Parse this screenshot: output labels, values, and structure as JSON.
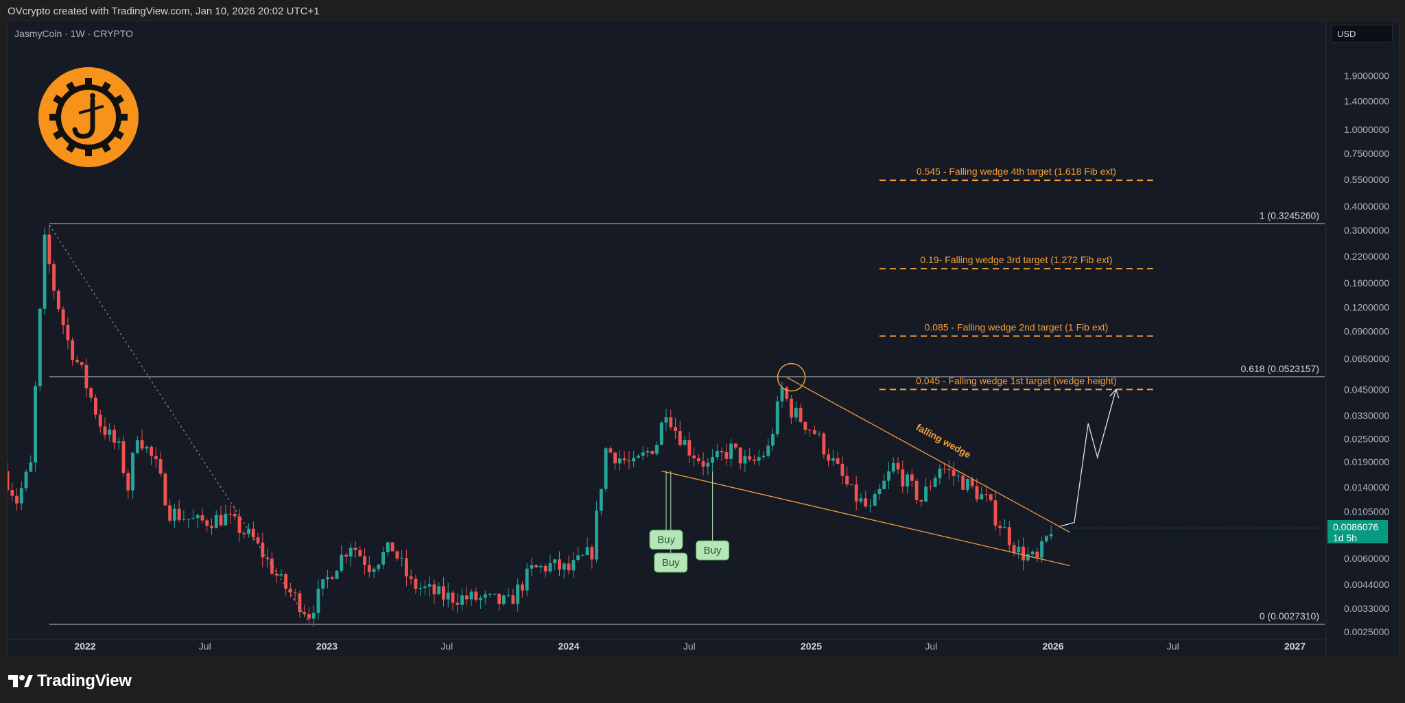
{
  "header": {
    "credit": "OVcrypto created with TradingView.com, Jan 10, 2026 20:02 UTC+1"
  },
  "symbol": {
    "title": "JasmyCoin · 1W · CRYPTO"
  },
  "currency_button": {
    "label": "USD"
  },
  "last_price": {
    "value": "0.0086076",
    "countdown": "1d 5h"
  },
  "brand": {
    "name": "TradingView"
  },
  "colors": {
    "up": "#26a69a",
    "down": "#ef5350",
    "accent": "#f7931a",
    "fib": "#d1d4dc",
    "target": "#f59e3a",
    "buy": "#b7e4b9"
  },
  "chart_data": {
    "type": "candlestick",
    "title": "JasmyCoin · 1W · CRYPTO",
    "scale": "log",
    "ylim": [
      0.0025,
      2.6
    ],
    "xlim": [
      "2021-09-06",
      "2027-02-15"
    ],
    "grid": false,
    "y_tick_labels": [
      "1.9000000",
      "1.4000000",
      "1.0000000",
      "0.7500000",
      "0.5500000",
      "0.4000000",
      "0.3000000",
      "0.2200000",
      "0.1600000",
      "0.1200000",
      "0.0900000",
      "0.0650000",
      "0.0450000",
      "0.0330000",
      "0.0250000",
      "0.0190000",
      "0.0140000",
      "0.0105000",
      "0.0060000",
      "0.0044000",
      "0.0033000",
      "0.0025000"
    ],
    "y_tick_values": [
      1.9,
      1.4,
      1.0,
      0.75,
      0.55,
      0.4,
      0.3,
      0.22,
      0.16,
      0.12,
      0.09,
      0.065,
      0.045,
      0.033,
      0.025,
      0.019,
      0.014,
      0.0105,
      0.006,
      0.0044,
      0.0033,
      0.0025
    ],
    "x_ticks": [
      {
        "date": "2022-01-01",
        "label": "2022",
        "major": true
      },
      {
        "date": "2022-07-01",
        "label": "Jul",
        "major": false
      },
      {
        "date": "2023-01-01",
        "label": "2023",
        "major": true
      },
      {
        "date": "2023-07-01",
        "label": "Jul",
        "major": false
      },
      {
        "date": "2024-01-01",
        "label": "2024",
        "major": true
      },
      {
        "date": "2024-07-01",
        "label": "Jul",
        "major": false
      },
      {
        "date": "2025-01-01",
        "label": "2025",
        "major": true
      },
      {
        "date": "2025-07-01",
        "label": "Jul",
        "major": false
      },
      {
        "date": "2026-01-01",
        "label": "2026",
        "major": true
      },
      {
        "date": "2026-07-01",
        "label": "Jul",
        "major": false
      },
      {
        "date": "2027-01-01",
        "label": "2027",
        "major": true
      }
    ],
    "path_anchors": [
      {
        "date": "2021-09-06",
        "price": 0.017
      },
      {
        "date": "2021-09-27",
        "price": 0.012
      },
      {
        "date": "2021-10-18",
        "price": 0.018
      },
      {
        "date": "2021-10-25",
        "price": 0.045
      },
      {
        "date": "2021-11-01",
        "price": 0.11
      },
      {
        "date": "2021-11-08",
        "price": 0.26
      },
      {
        "date": "2021-11-22",
        "price": 0.15
      },
      {
        "date": "2021-12-13",
        "price": 0.08
      },
      {
        "date": "2022-01-03",
        "price": 0.055
      },
      {
        "date": "2022-01-31",
        "price": 0.03
      },
      {
        "date": "2022-02-28",
        "price": 0.022
      },
      {
        "date": "2022-03-14",
        "price": 0.014
      },
      {
        "date": "2022-03-28",
        "price": 0.027
      },
      {
        "date": "2022-04-25",
        "price": 0.018
      },
      {
        "date": "2022-05-16",
        "price": 0.0105
      },
      {
        "date": "2022-06-27",
        "price": 0.0092
      },
      {
        "date": "2022-08-08",
        "price": 0.0098
      },
      {
        "date": "2022-09-19",
        "price": 0.0075
      },
      {
        "date": "2022-10-31",
        "price": 0.0045
      },
      {
        "date": "2022-12-12",
        "price": 0.0031
      },
      {
        "date": "2023-01-16",
        "price": 0.0052
      },
      {
        "date": "2023-02-13",
        "price": 0.0072
      },
      {
        "date": "2023-03-13",
        "price": 0.0055
      },
      {
        "date": "2023-04-17",
        "price": 0.0068
      },
      {
        "date": "2023-05-15",
        "price": 0.0044
      },
      {
        "date": "2023-07-03",
        "price": 0.0038
      },
      {
        "date": "2023-08-21",
        "price": 0.0037
      },
      {
        "date": "2023-10-09",
        "price": 0.0035
      },
      {
        "date": "2023-11-13",
        "price": 0.0052
      },
      {
        "date": "2023-12-11",
        "price": 0.0055
      },
      {
        "date": "2024-01-08",
        "price": 0.0052
      },
      {
        "date": "2024-02-12",
        "price": 0.0065
      },
      {
        "date": "2024-03-04",
        "price": 0.022
      },
      {
        "date": "2024-04-15",
        "price": 0.018
      },
      {
        "date": "2024-05-20",
        "price": 0.024
      },
      {
        "date": "2024-06-03",
        "price": 0.036
      },
      {
        "date": "2024-06-17",
        "price": 0.028
      },
      {
        "date": "2024-07-08",
        "price": 0.022
      },
      {
        "date": "2024-08-05",
        "price": 0.018
      },
      {
        "date": "2024-09-09",
        "price": 0.022
      },
      {
        "date": "2024-10-07",
        "price": 0.018
      },
      {
        "date": "2024-11-04",
        "price": 0.022
      },
      {
        "date": "2024-11-25",
        "price": 0.045
      },
      {
        "date": "2024-12-09",
        "price": 0.035
      },
      {
        "date": "2025-01-13",
        "price": 0.027
      },
      {
        "date": "2025-03-10",
        "price": 0.013
      },
      {
        "date": "2025-04-07",
        "price": 0.0105
      },
      {
        "date": "2025-05-12",
        "price": 0.018
      },
      {
        "date": "2025-06-23",
        "price": 0.012
      },
      {
        "date": "2025-07-21",
        "price": 0.018
      },
      {
        "date": "2025-08-25",
        "price": 0.015
      },
      {
        "date": "2025-09-29",
        "price": 0.012
      },
      {
        "date": "2025-10-13",
        "price": 0.0098
      },
      {
        "date": "2025-11-17",
        "price": 0.0065
      },
      {
        "date": "2025-12-15",
        "price": 0.0058
      },
      {
        "date": "2026-01-05",
        "price": 0.0086
      }
    ],
    "fib_levels": [
      {
        "ratio": "1",
        "price": 0.324526,
        "label": "1 (0.3245260)"
      },
      {
        "ratio": "0.618",
        "price": 0.0523157,
        "label": "0.618 (0.0523157)"
      },
      {
        "ratio": "0",
        "price": 0.002731,
        "label": "0 (0.0027310)"
      }
    ],
    "fib_start_date": "2021-11-08",
    "targets": [
      {
        "price": 0.545,
        "label": "0.545 - Falling wedge 4th target (1.618 Fib ext)"
      },
      {
        "price": 0.19,
        "label": "0.19- Falling wedge 3rd target (1.272 Fib ext)"
      },
      {
        "price": 0.085,
        "label": "0.085 - Falling wedge 2nd target (1 Fib ext)"
      },
      {
        "price": 0.045,
        "label": "0.045 - Falling wedge 1st target (wedge height)"
      }
    ],
    "targets_start_date": "2025-04-14",
    "targets_end_date": "2026-06-01",
    "wedge": {
      "label": "falling wedge",
      "upper": [
        {
          "date": "2024-11-25",
          "price": 0.052
        },
        {
          "date": "2026-01-26",
          "price": 0.0082
        }
      ],
      "lower": [
        {
          "date": "2024-05-20",
          "price": 0.017
        },
        {
          "date": "2026-01-26",
          "price": 0.0055
        }
      ]
    },
    "downtrend": [
      {
        "date": "2021-11-08",
        "price": 0.32
      },
      {
        "date": "2022-12-05",
        "price": 0.0028
      }
    ],
    "peak_marker": {
      "date": "2024-12-02",
      "price": 0.052
    },
    "projection": [
      {
        "date": "2026-01-12",
        "price": 0.0088
      },
      {
        "date": "2026-02-02",
        "price": 0.0092
      },
      {
        "date": "2026-02-23",
        "price": 0.03
      },
      {
        "date": "2026-03-09",
        "price": 0.02
      },
      {
        "date": "2026-04-06",
        "price": 0.045
      }
    ],
    "buy_signals": [
      {
        "label": "Buy",
        "date": "2024-05-27",
        "price": 0.0075
      },
      {
        "label": "Buy",
        "date": "2024-06-03",
        "price": 0.0057
      },
      {
        "label": "Buy",
        "date": "2024-08-05",
        "price": 0.0066
      }
    ]
  }
}
